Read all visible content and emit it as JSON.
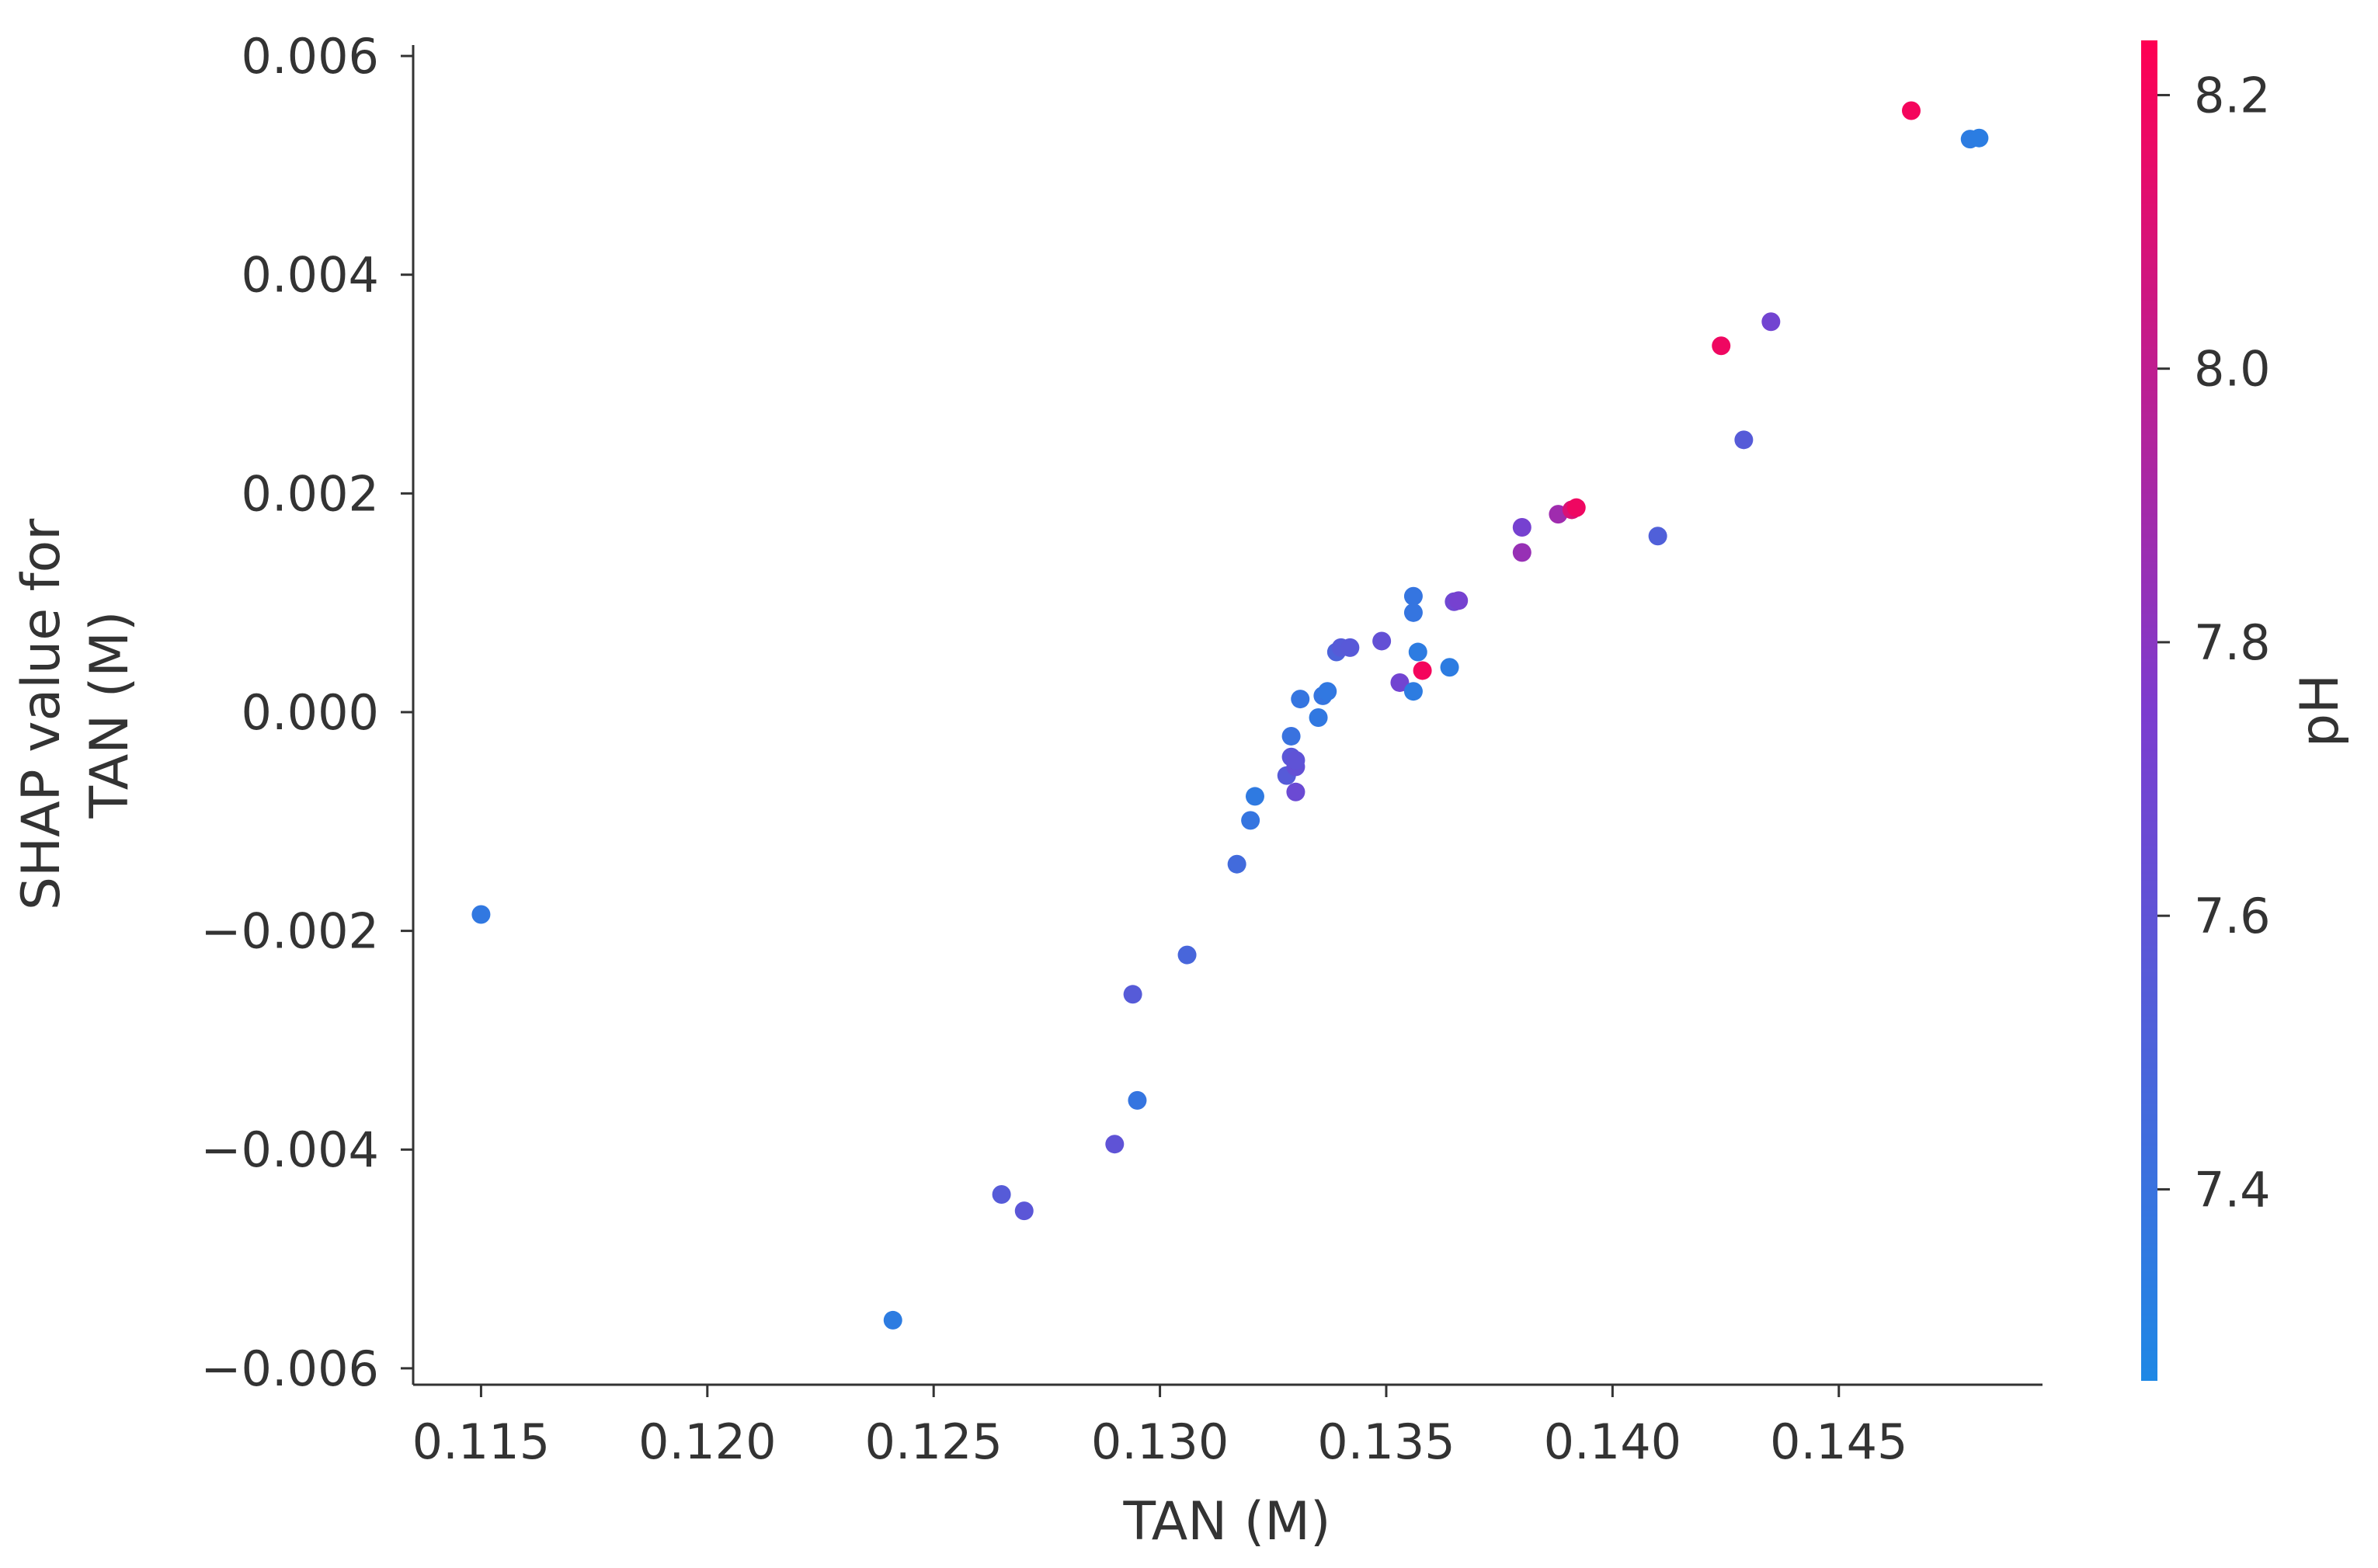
{
  "chart_data": {
    "type": "scatter",
    "xlabel": "TAN (M)",
    "ylabel": "SHAP value for\nTAN (M)",
    "xlim": [
      0.1135,
      0.1495
    ],
    "ylim": [
      -0.00615,
      0.0061
    ],
    "x_ticks": [
      "0.115",
      "0.120",
      "0.125",
      "0.130",
      "0.135",
      "0.140",
      "0.145"
    ],
    "x_tick_values": [
      0.115,
      0.12,
      0.125,
      0.13,
      0.135,
      0.14,
      0.145
    ],
    "y_ticks": [
      "0.006",
      "0.004",
      "0.002",
      "0.000",
      "−0.002",
      "−0.004",
      "−0.006"
    ],
    "y_tick_values": [
      0.006,
      0.004,
      0.002,
      0.0,
      -0.002,
      -0.004,
      -0.006
    ],
    "grid": false,
    "legend": "none",
    "colorbar": {
      "label": "pH",
      "range": [
        7.26,
        8.24
      ],
      "ticks": [
        "8.2",
        "8.0",
        "7.8",
        "7.6",
        "7.4"
      ],
      "tick_values": [
        8.2,
        8.0,
        7.8,
        7.6,
        7.4
      ],
      "color_low": "#1e88e5",
      "color_mid": "#7c3ccf",
      "color_high": "#ff0052"
    },
    "points": [
      {
        "x": 0.115,
        "y": -0.00185,
        "c": 7.36
      },
      {
        "x": 0.1241,
        "y": -0.00556,
        "c": 7.34
      },
      {
        "x": 0.1265,
        "y": -0.00441,
        "c": 7.55
      },
      {
        "x": 0.127,
        "y": -0.00456,
        "c": 7.58
      },
      {
        "x": 0.129,
        "y": -0.00395,
        "c": 7.6
      },
      {
        "x": 0.1294,
        "y": -0.00258,
        "c": 7.55
      },
      {
        "x": 0.1295,
        "y": -0.00355,
        "c": 7.38
      },
      {
        "x": 0.1306,
        "y": -0.00222,
        "c": 7.48
      },
      {
        "x": 0.1317,
        "y": -0.00139,
        "c": 7.45
      },
      {
        "x": 0.132,
        "y": -0.00099,
        "c": 7.38
      },
      {
        "x": 0.1321,
        "y": -0.00077,
        "c": 7.35
      },
      {
        "x": 0.1328,
        "y": -0.00058,
        "c": 7.55
      },
      {
        "x": 0.1329,
        "y": -0.00022,
        "c": 7.4
      },
      {
        "x": 0.1329,
        "y": -0.00041,
        "c": 7.58
      },
      {
        "x": 0.133,
        "y": -0.00073,
        "c": 7.66
      },
      {
        "x": 0.133,
        "y": -0.0005,
        "c": 7.62
      },
      {
        "x": 0.133,
        "y": -0.00044,
        "c": 7.6
      },
      {
        "x": 0.1331,
        "y": 0.00012,
        "c": 7.38
      },
      {
        "x": 0.1335,
        "y": -5e-05,
        "c": 7.36
      },
      {
        "x": 0.1336,
        "y": 0.00015,
        "c": 7.38
      },
      {
        "x": 0.1337,
        "y": 0.00019,
        "c": 7.36
      },
      {
        "x": 0.1339,
        "y": 0.00055,
        "c": 7.5
      },
      {
        "x": 0.134,
        "y": 0.00059,
        "c": 7.55
      },
      {
        "x": 0.1342,
        "y": 0.00059,
        "c": 7.56
      },
      {
        "x": 0.1349,
        "y": 0.00065,
        "c": 7.62
      },
      {
        "x": 0.1353,
        "y": 0.00027,
        "c": 7.7
      },
      {
        "x": 0.1356,
        "y": 0.00106,
        "c": 7.38
      },
      {
        "x": 0.1356,
        "y": 0.00091,
        "c": 7.38
      },
      {
        "x": 0.1356,
        "y": 0.00019,
        "c": 7.34
      },
      {
        "x": 0.1357,
        "y": 0.00055,
        "c": 7.34
      },
      {
        "x": 0.1358,
        "y": 0.00038,
        "c": 8.2
      },
      {
        "x": 0.1364,
        "y": 0.00041,
        "c": 7.34
      },
      {
        "x": 0.1365,
        "y": 0.00101,
        "c": 7.68
      },
      {
        "x": 0.1366,
        "y": 0.00102,
        "c": 7.72
      },
      {
        "x": 0.138,
        "y": 0.00169,
        "c": 7.72
      },
      {
        "x": 0.138,
        "y": 0.00146,
        "c": 7.85
      },
      {
        "x": 0.1388,
        "y": 0.00181,
        "c": 7.88
      },
      {
        "x": 0.1391,
        "y": 0.00185,
        "c": 8.1
      },
      {
        "x": 0.1392,
        "y": 0.00187,
        "c": 8.18
      },
      {
        "x": 0.141,
        "y": 0.00161,
        "c": 7.52
      },
      {
        "x": 0.1424,
        "y": 0.00335,
        "c": 8.18
      },
      {
        "x": 0.1429,
        "y": 0.00249,
        "c": 7.55
      },
      {
        "x": 0.1435,
        "y": 0.00357,
        "c": 7.7
      },
      {
        "x": 0.1466,
        "y": 0.0055,
        "c": 8.2
      },
      {
        "x": 0.1479,
        "y": 0.00524,
        "c": 7.34
      },
      {
        "x": 0.1481,
        "y": 0.00525,
        "c": 7.33
      }
    ]
  }
}
